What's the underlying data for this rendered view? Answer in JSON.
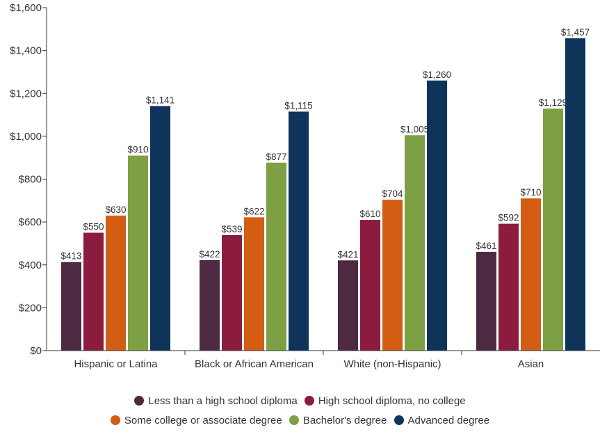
{
  "chart_data": {
    "type": "bar",
    "title": "",
    "xlabel": "",
    "ylabel": "",
    "ylim": [
      0,
      1600
    ],
    "yticks": [
      0,
      200,
      400,
      600,
      800,
      1000,
      1200,
      1400,
      1600
    ],
    "ytick_labels": [
      "$0",
      "$200",
      "$400",
      "$600",
      "$800",
      "$1,000",
      "$1,200",
      "$1,400",
      "$1,600"
    ],
    "grid": false,
    "legend_position": "bottom",
    "categories": [
      "Hispanic or Latina",
      "Black or African American",
      "White (non-Hispanic)",
      "Asian"
    ],
    "series": [
      {
        "name": "Less than a high school diploma",
        "color": "#4e2942",
        "values": [
          413,
          422,
          421,
          461
        ],
        "labels": [
          "$413",
          "$422",
          "$421",
          "$461"
        ]
      },
      {
        "name": "High school diploma, no college",
        "color": "#8c1c3e",
        "values": [
          550,
          539,
          610,
          592
        ],
        "labels": [
          "$550",
          "$539",
          "$610",
          "$592"
        ]
      },
      {
        "name": "Some college or associate degree",
        "color": "#d45d14",
        "values": [
          630,
          622,
          704,
          710
        ],
        "labels": [
          "$630",
          "$622",
          "$704",
          "$710"
        ]
      },
      {
        "name": "Bachelor's degree",
        "color": "#7ea044",
        "values": [
          910,
          877,
          1005,
          1129
        ],
        "labels": [
          "$910",
          "$877",
          "$1,005",
          "$1,129"
        ]
      },
      {
        "name": "Advanced degree",
        "color": "#0e3459",
        "values": [
          1141,
          1115,
          1260,
          1457
        ],
        "labels": [
          "$1,141",
          "$1,115",
          "$1,260",
          "$1,457"
        ]
      }
    ]
  }
}
